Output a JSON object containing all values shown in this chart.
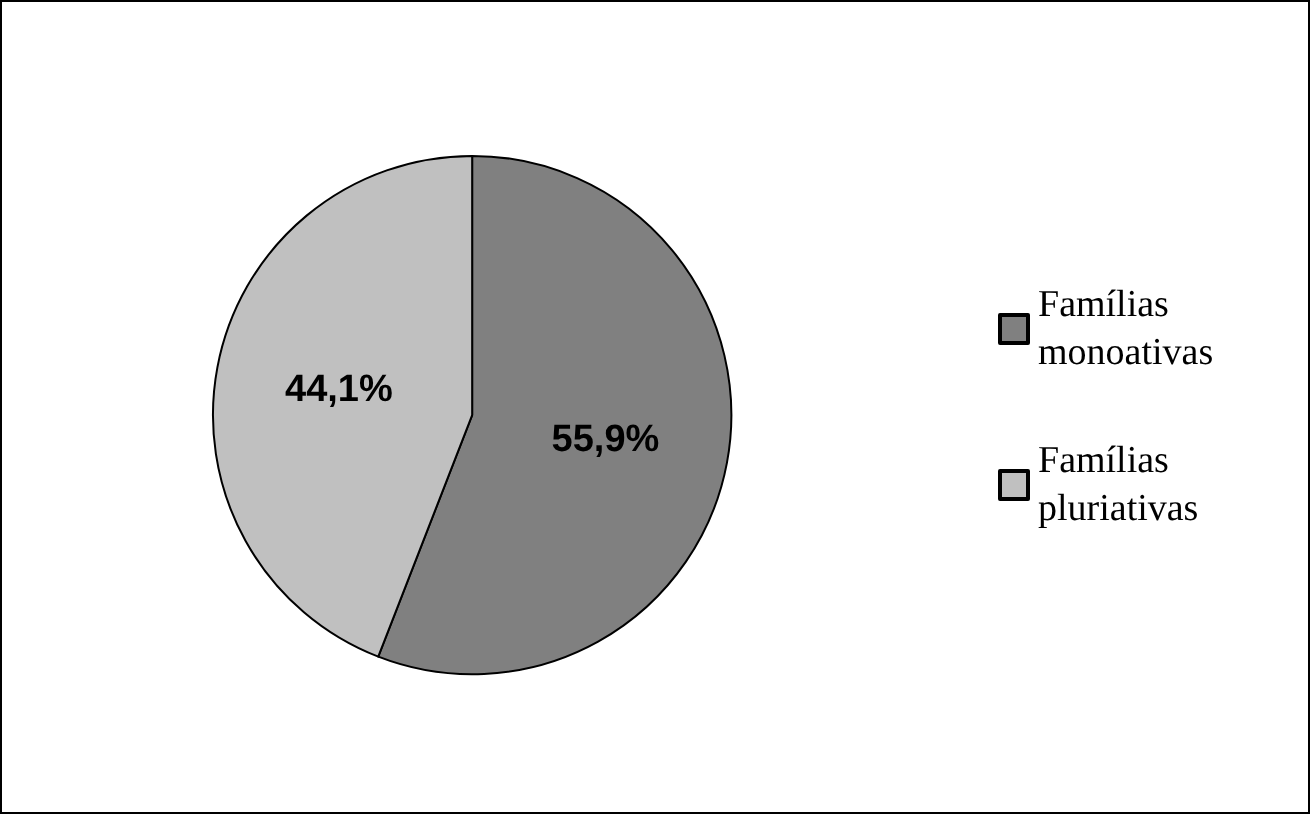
{
  "chart_data": {
    "type": "pie",
    "categories": [
      "Famílias monoativas",
      "Famílias pluriativas"
    ],
    "values": [
      55.9,
      44.1
    ],
    "colors": [
      "#808080",
      "#c0c0c0"
    ],
    "value_labels": [
      "55,9%",
      "44,1%"
    ],
    "legend": "right"
  }
}
